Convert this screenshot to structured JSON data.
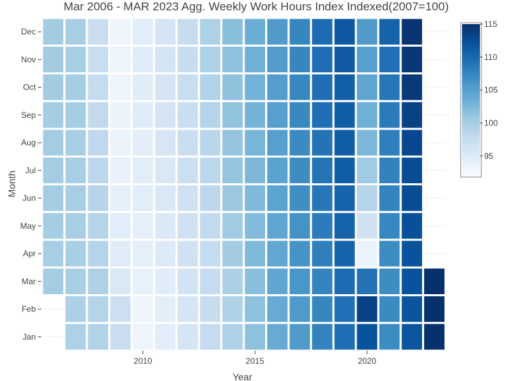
{
  "chart_data": {
    "type": "heatmap",
    "title": "Mar 2006 - MAR 2023 Agg. Weekly Work Hours Index Indexed(2007=100)",
    "xlabel": "Year",
    "ylabel": "Month",
    "x": [
      2006,
      2007,
      2008,
      2009,
      2010,
      2011,
      2012,
      2013,
      2014,
      2015,
      2016,
      2017,
      2018,
      2019,
      2020,
      2021,
      2022,
      2023
    ],
    "y": [
      "Jan",
      "Feb",
      "Mar",
      "Apr",
      "May",
      "Jun",
      "Jul",
      "Aug",
      "Sep",
      "Oct",
      "Nov",
      "Dec"
    ],
    "x_ticks": [
      2010,
      2015,
      2020
    ],
    "xlim": [
      2005.5,
      2023.5
    ],
    "colorscale": "Blues",
    "colorbar": {
      "range": [
        92,
        115
      ],
      "ticks": [
        95,
        100,
        105,
        110,
        115
      ]
    },
    "gridlines": true,
    "z": [
      [
        null,
        99.5,
        99.2,
        97.3,
        93.2,
        94.5,
        96.0,
        97.7,
        99.4,
        101.5,
        103.8,
        105.4,
        107.7,
        109.4,
        112.0,
        106.9,
        111.7,
        115.0
      ],
      [
        null,
        99.6,
        99.0,
        97.0,
        93.0,
        94.3,
        96.0,
        97.6,
        99.3,
        101.6,
        103.8,
        105.5,
        107.4,
        109.3,
        113.5,
        107.0,
        111.8,
        115.0
      ],
      [
        100.2,
        99.8,
        99.5,
        95.5,
        93.8,
        94.7,
        96.3,
        97.7,
        99.6,
        101.8,
        104.3,
        105.9,
        107.6,
        109.7,
        109.2,
        106.8,
        112.0,
        115.0
      ],
      [
        100.0,
        99.8,
        99.0,
        94.8,
        94.2,
        95.0,
        96.5,
        97.8,
        100.3,
        102.3,
        104.2,
        106.2,
        108.0,
        110.4,
        93.5,
        106.8,
        112.0,
        null
      ],
      [
        100.1,
        99.9,
        99.0,
        94.5,
        94.2,
        95.2,
        96.5,
        98.0,
        100.4,
        102.2,
        104.3,
        106.3,
        108.3,
        110.5,
        96.5,
        107.3,
        112.2,
        null
      ],
      [
        100.2,
        100.0,
        98.8,
        94.0,
        94.5,
        95.5,
        96.6,
        98.4,
        100.8,
        102.3,
        104.6,
        106.6,
        108.7,
        110.4,
        99.0,
        107.6,
        112.6,
        null
      ],
      [
        100.2,
        100.0,
        98.5,
        93.6,
        94.5,
        95.5,
        97.0,
        98.5,
        101.1,
        102.5,
        104.7,
        106.8,
        109.0,
        111.0,
        100.5,
        107.8,
        112.6,
        null
      ],
      [
        100.2,
        100.0,
        98.2,
        93.4,
        94.3,
        95.8,
        97.2,
        98.6,
        101.2,
        102.8,
        105.0,
        107.0,
        109.1,
        111.0,
        102.5,
        108.0,
        113.0,
        null
      ],
      [
        100.2,
        100.1,
        98.0,
        93.3,
        94.6,
        96.1,
        97.3,
        99.0,
        101.3,
        103.0,
        105.0,
        107.2,
        109.4,
        111.0,
        103.3,
        108.4,
        113.5,
        null
      ],
      [
        100.3,
        100.1,
        97.8,
        93.2,
        94.7,
        96.0,
        97.4,
        99.2,
        101.4,
        103.1,
        105.1,
        107.3,
        109.4,
        110.9,
        104.4,
        108.8,
        114.2,
        null
      ],
      [
        100.3,
        100.0,
        97.4,
        93.2,
        94.6,
        96.2,
        97.5,
        99.4,
        101.6,
        103.3,
        105.3,
        107.4,
        109.5,
        111.2,
        105.0,
        109.3,
        114.3,
        null
      ],
      [
        100.3,
        99.9,
        97.2,
        93.0,
        94.5,
        96.0,
        97.6,
        99.5,
        101.8,
        103.6,
        105.4,
        107.4,
        109.7,
        111.5,
        105.4,
        110.5,
        114.6,
        null
      ]
    ]
  },
  "colors": {
    "scale": [
      "#f7fbff",
      "#deebf7",
      "#c6dbef",
      "#9ecae1",
      "#6baed6",
      "#4292c6",
      "#2171b5",
      "#08519c",
      "#08306b"
    ],
    "gap": "#ffffff",
    "grid": "#eeeeee",
    "text": "#444444"
  }
}
